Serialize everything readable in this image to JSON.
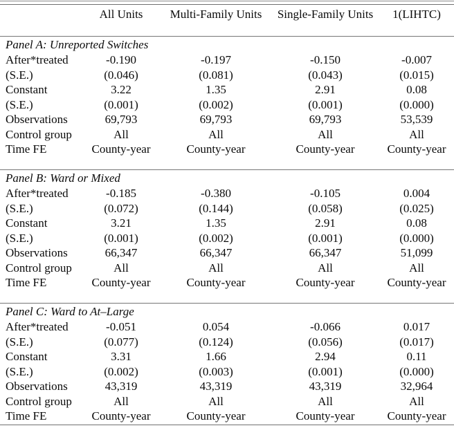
{
  "table": {
    "columns": [
      "",
      "All Units",
      "Multi-Family Units",
      "Single-Family Units",
      "1(LIHTC)"
    ],
    "panels": [
      {
        "title": "Panel A: Unreported Switches",
        "rows": [
          {
            "label": "After*treated",
            "values": [
              "-0.190",
              "-0.197",
              "-0.150",
              "-0.007"
            ]
          },
          {
            "label": "(S.E.)",
            "values": [
              "(0.046)",
              "(0.081)",
              "(0.043)",
              "(0.015)"
            ]
          },
          {
            "label": "Constant",
            "values": [
              "3.22",
              "1.35",
              "2.91",
              "0.08"
            ]
          },
          {
            "label": "(S.E.)",
            "values": [
              "(0.001)",
              "(0.002)",
              "(0.001)",
              "(0.000)"
            ]
          },
          {
            "label": "Observations",
            "values": [
              "69,793",
              "69,793",
              "69,793",
              "53,539"
            ]
          },
          {
            "label": "Control group",
            "values": [
              "All",
              "All",
              "All",
              "All"
            ]
          },
          {
            "label": "Time FE",
            "values": [
              "County-year",
              "County-year",
              "County-year",
              "County-year"
            ]
          }
        ]
      },
      {
        "title": "Panel B: Ward or Mixed",
        "rows": [
          {
            "label": "After*treated",
            "values": [
              "-0.185",
              "-0.380",
              "-0.105",
              "0.004"
            ]
          },
          {
            "label": "(S.E.)",
            "values": [
              "(0.072)",
              "(0.144)",
              "(0.058)",
              "(0.025)"
            ]
          },
          {
            "label": "Constant",
            "values": [
              "3.21",
              "1.35",
              "2.91",
              "0.08"
            ]
          },
          {
            "label": "(S.E.)",
            "values": [
              "(0.001)",
              "(0.002)",
              "(0.001)",
              "(0.000)"
            ]
          },
          {
            "label": "Observations",
            "values": [
              "66,347",
              "66,347",
              "66,347",
              "51,099"
            ]
          },
          {
            "label": "Control group",
            "values": [
              "All",
              "All",
              "All",
              "All"
            ]
          },
          {
            "label": "Time FE",
            "values": [
              "County-year",
              "County-year",
              "County-year",
              "County-year"
            ]
          }
        ]
      },
      {
        "title": "Panel C: Ward to At–Large",
        "rows": [
          {
            "label": "After*treated",
            "values": [
              "-0.051",
              "0.054",
              "-0.066",
              "0.017"
            ]
          },
          {
            "label": "(S.E.)",
            "values": [
              "(0.077)",
              "(0.124)",
              "(0.056)",
              "(0.017)"
            ]
          },
          {
            "label": "Constant",
            "values": [
              "3.31",
              "1.66",
              "2.94",
              "0.11"
            ]
          },
          {
            "label": "(S.E.)",
            "values": [
              "(0.002)",
              "(0.003)",
              "(0.001)",
              "(0.000)"
            ]
          },
          {
            "label": "Observations",
            "values": [
              "43,319",
              "43,319",
              "43,319",
              "32,964"
            ]
          },
          {
            "label": "Control group",
            "values": [
              "All",
              "All",
              "All",
              "All"
            ]
          },
          {
            "label": "Time FE",
            "values": [
              "County-year",
              "County-year",
              "County-year",
              "County-year"
            ]
          }
        ]
      }
    ]
  }
}
